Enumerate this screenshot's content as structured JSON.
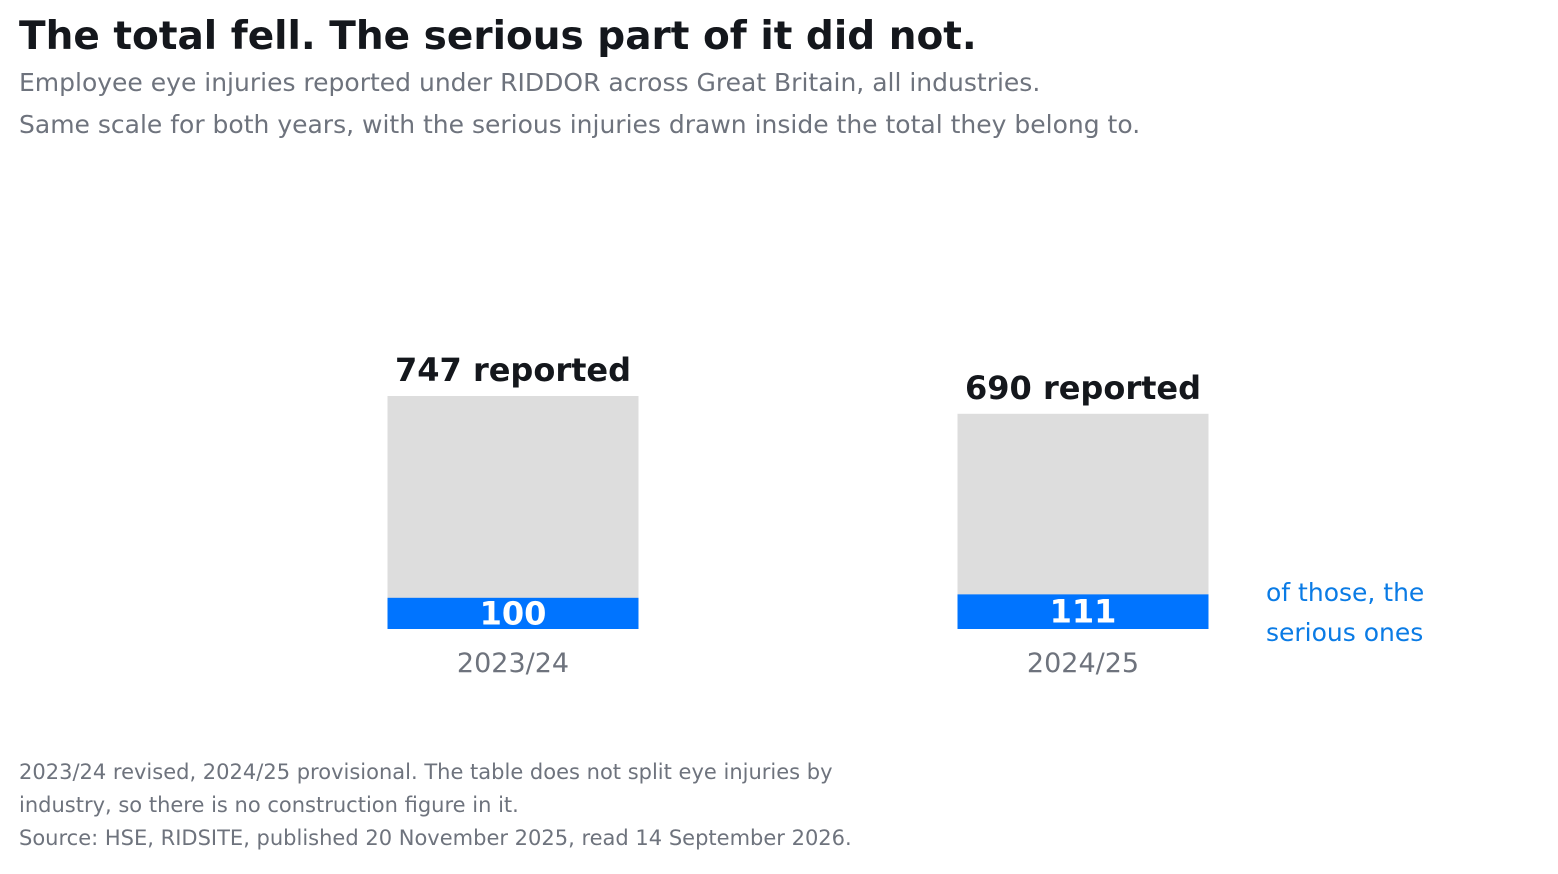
{
  "title": "The total fell. The serious part of it did not.",
  "subtitle_lines": [
    "Employee eye injuries reported under RIDDOR across Great Britain, all industries.",
    "Same scale for both years, with the serious injuries drawn inside the total they belong to."
  ],
  "chart_data": {
    "type": "bar",
    "categories": [
      "2023/24",
      "2024/25"
    ],
    "series": [
      {
        "name": "reported",
        "values": [
          747,
          690
        ],
        "label_suffix": " reported",
        "color": "#dddddd"
      },
      {
        "name": "",
        "values": [
          100,
          111
        ],
        "color": "#0074ff"
      }
    ],
    "annotation": [
      "of those, the",
      "serious ones"
    ],
    "annotation_color": "#0a7be5"
  },
  "footnote_lines": [
    "2023/24 revised, 2024/25 provisional. The table does not split eye injuries by",
    "industry, so there is no construction figure in it.",
    "Source: HSE, RIDSITE, published 20 November 2025, read 14 September 2026."
  ]
}
